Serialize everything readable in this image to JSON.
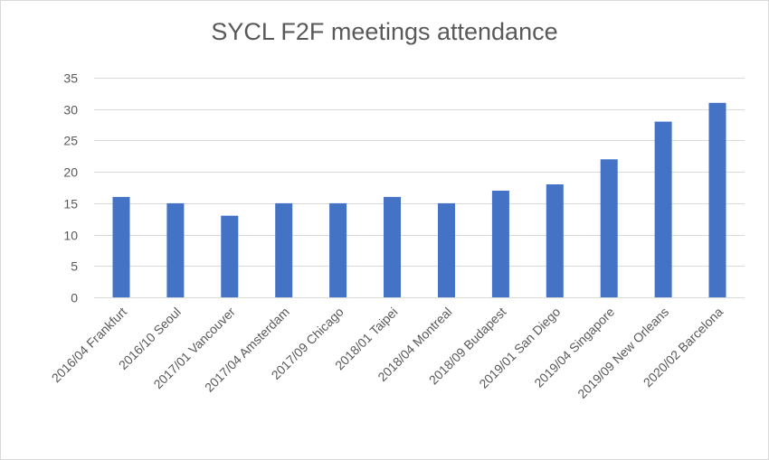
{
  "chart_data": {
    "type": "bar",
    "title": "SYCL F2F meetings attendance",
    "xlabel": "",
    "ylabel": "",
    "categories": [
      "2016/04 Frankfurt",
      "2016/10 Seoul",
      "2017/01 Vancouver",
      "2017/04 Amsterdam",
      "2017/09 Chicago",
      "2018/01 Taipei",
      "2018/04 Montreal",
      "2018/09 Budapest",
      "2019/01 San Diego",
      "2019/04 Singapore",
      "2019/09 New Orleans",
      "2020/02 Barcelona"
    ],
    "values": [
      16,
      15,
      13,
      15,
      15,
      16,
      15,
      17,
      18,
      22,
      28,
      31
    ],
    "ylim": [
      0,
      35
    ],
    "yticks": [
      0,
      5,
      10,
      15,
      20,
      25,
      30,
      35
    ],
    "grid": true,
    "legend": "none",
    "colors": {
      "bar": "#4472c4",
      "grid": "#d9d9d9",
      "text": "#595959"
    }
  }
}
